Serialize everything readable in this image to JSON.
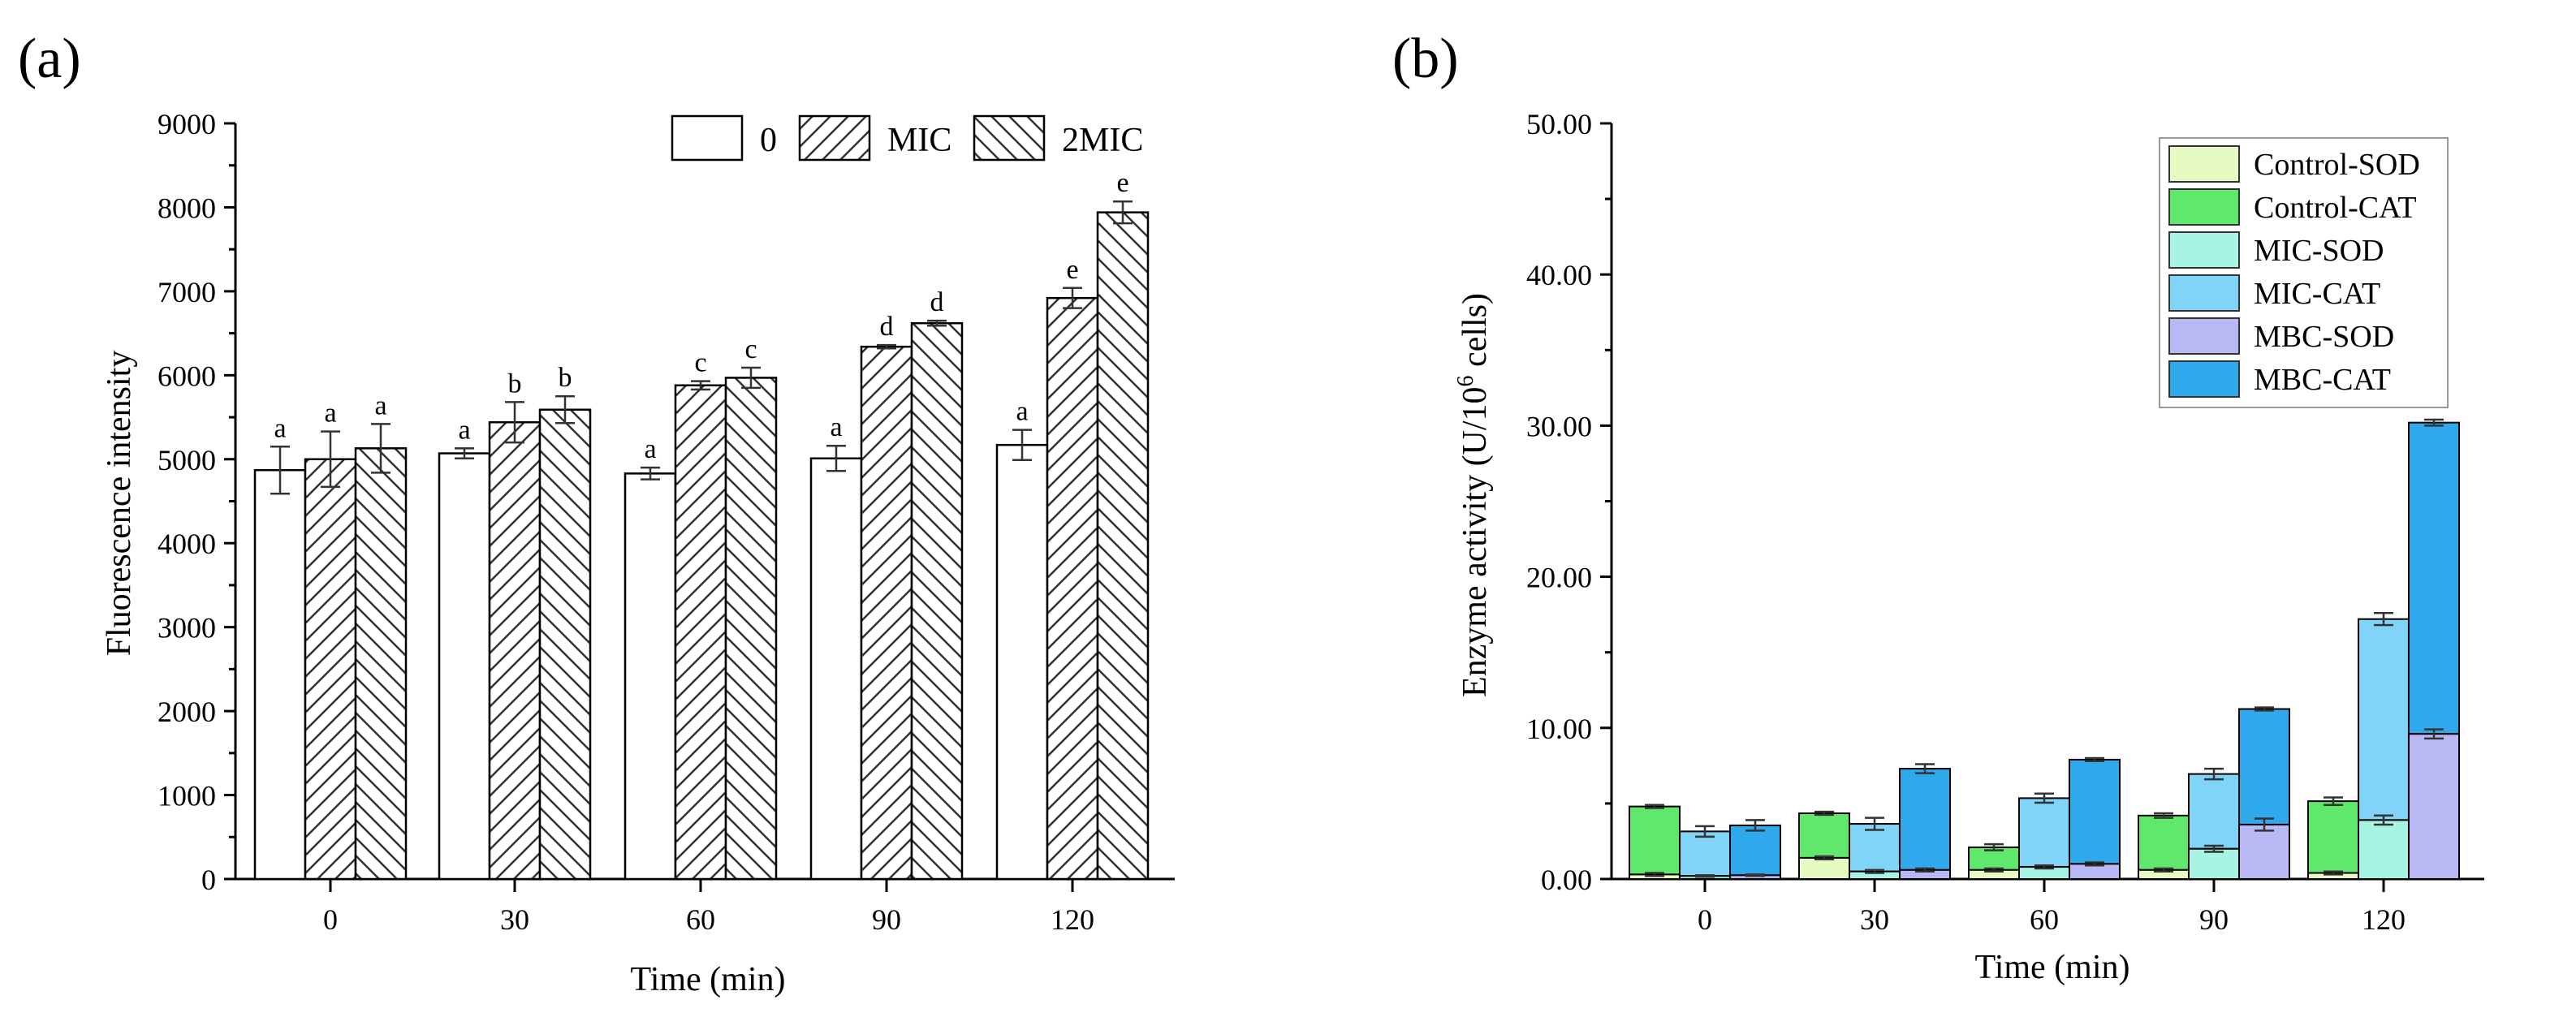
{
  "chart_data": [
    {
      "panel_label": "(a)",
      "type": "bar",
      "title": "",
      "xlabel": "Time (min)",
      "ylabel": "Fluorescence intensity",
      "categories": [
        "0",
        "30",
        "60",
        "90",
        "120"
      ],
      "ylim": [
        0,
        9000
      ],
      "yticks": [
        0,
        1000,
        2000,
        3000,
        4000,
        5000,
        6000,
        7000,
        8000,
        9000
      ],
      "legend_position": "top-right",
      "series": [
        {
          "name": "0",
          "pattern": "blank",
          "values": [
            4870,
            5070,
            4830,
            5010,
            5170
          ],
          "errors": [
            280,
            60,
            70,
            150,
            180
          ],
          "labels": [
            "a",
            "a",
            "a",
            "a",
            "a"
          ]
        },
        {
          "name": "MIC",
          "pattern": "hatch-forward",
          "values": [
            5000,
            5440,
            5880,
            6340,
            6920
          ],
          "errors": [
            330,
            240,
            50,
            20,
            120
          ],
          "labels": [
            "a",
            "b",
            "c",
            "d",
            "e"
          ]
        },
        {
          "name": "2MIC",
          "pattern": "hatch-back",
          "values": [
            5130,
            5590,
            5970,
            6620,
            7940
          ],
          "errors": [
            290,
            160,
            120,
            30,
            130
          ],
          "labels": [
            "a",
            "b",
            "c",
            "d",
            "e"
          ]
        }
      ]
    },
    {
      "panel_label": "(b)",
      "type": "stacked-bar",
      "title": "",
      "xlabel": "Time (min)",
      "ylabel_main": "Enzyme activity (U/10",
      "ylabel_sup": "6",
      "ylabel_end": " cells)",
      "categories": [
        "0",
        "30",
        "60",
        "90",
        "120"
      ],
      "ylim": [
        0,
        50
      ],
      "yticks": [
        "0.00",
        "10.00",
        "20.00",
        "30.00",
        "40.00",
        "50.00"
      ],
      "ytick_values": [
        0,
        10,
        20,
        30,
        40,
        50
      ],
      "legend_position": "top-right",
      "legend": [
        "Control-SOD",
        "Control-CAT",
        "MIC-SOD",
        "MIC-CAT",
        "MBC-SOD",
        "MBC-CAT"
      ],
      "colors": {
        "Control-SOD": "#e6fbc4",
        "Control-CAT": "#5fe86c",
        "MIC-SOD": "#a8f4e4",
        "MIC-CAT": "#7fd4f8",
        "MBC-SOD": "#b8b9f4",
        "MBC-CAT": "#2fa9ec"
      },
      "groups": [
        {
          "name": "Control",
          "sod_series": "Control-SOD",
          "cat_series": "Control-CAT",
          "sod": [
            0.3,
            1.4,
            0.6,
            0.6,
            0.4
          ],
          "total": [
            4.8,
            4.35,
            2.1,
            4.2,
            5.15
          ],
          "sod_err": [
            0.1,
            0.1,
            0.1,
            0.1,
            0.1
          ],
          "total_err": [
            0.1,
            0.1,
            0.2,
            0.15,
            0.25
          ]
        },
        {
          "name": "MIC",
          "sod_series": "MIC-SOD",
          "cat_series": "MIC-CAT",
          "sod": [
            0.2,
            0.5,
            0.8,
            2.0,
            3.9
          ],
          "total": [
            3.15,
            3.65,
            5.35,
            6.95,
            17.2
          ],
          "sod_err": [
            0.05,
            0.1,
            0.1,
            0.2,
            0.3
          ],
          "total_err": [
            0.35,
            0.4,
            0.3,
            0.35,
            0.4
          ]
        },
        {
          "name": "MBC",
          "sod_series": "MBC-SOD",
          "cat_series": "MBC-CAT",
          "sod": [
            0.25,
            0.6,
            1.0,
            3.6,
            9.6
          ],
          "total": [
            3.55,
            7.3,
            7.9,
            11.25,
            30.2
          ],
          "sod_err": [
            0.05,
            0.1,
            0.1,
            0.4,
            0.3
          ],
          "total_err": [
            0.35,
            0.3,
            0.1,
            0.1,
            0.2
          ]
        }
      ]
    }
  ]
}
